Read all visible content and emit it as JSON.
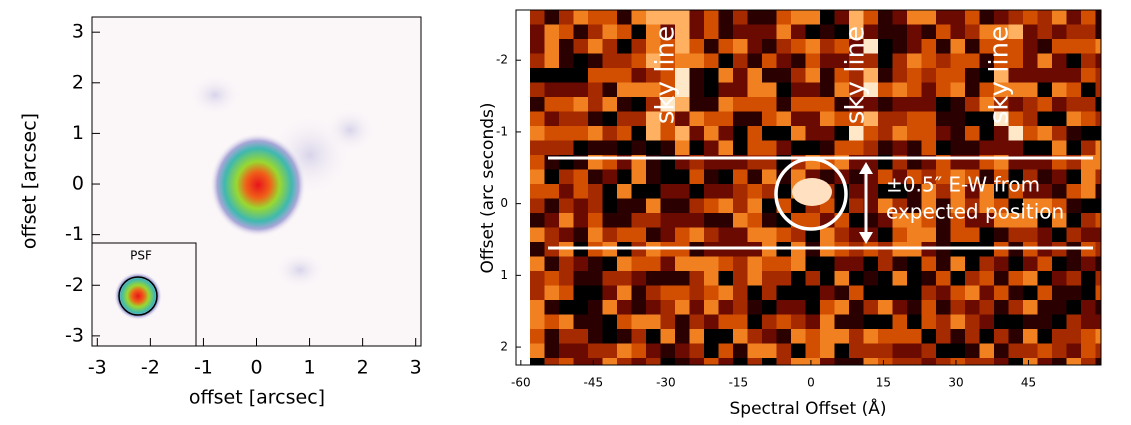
{
  "chart_data": [
    {
      "type": "image",
      "xlabel": "offset [arcsec]",
      "ylabel": "offset [arcsec]",
      "xlim": [
        -3.1,
        3.1
      ],
      "ylim": [
        -3.2,
        3.3
      ],
      "xticks": [
        -3,
        -2,
        -1,
        0,
        1,
        2,
        3
      ],
      "yticks": [
        -3,
        -2,
        -1,
        0,
        1,
        2,
        3
      ],
      "inset_label": "PSF"
    },
    {
      "type": "image",
      "xlabel": "Spectral Offset (Å)",
      "ylabel": "Offset (arc seconds)",
      "xlim": [
        -61,
        60
      ],
      "ylim": [
        -2.7,
        2.25
      ],
      "y_inverted": true,
      "xticks": [
        -60,
        -45,
        -30,
        -15,
        0,
        15,
        30,
        45
      ],
      "yticks": [
        -2,
        -1,
        0,
        1,
        2
      ],
      "annotations": [
        "sky line",
        "sky line",
        "sky line",
        "±0.5″ E-W from",
        "expected position"
      ]
    }
  ]
}
